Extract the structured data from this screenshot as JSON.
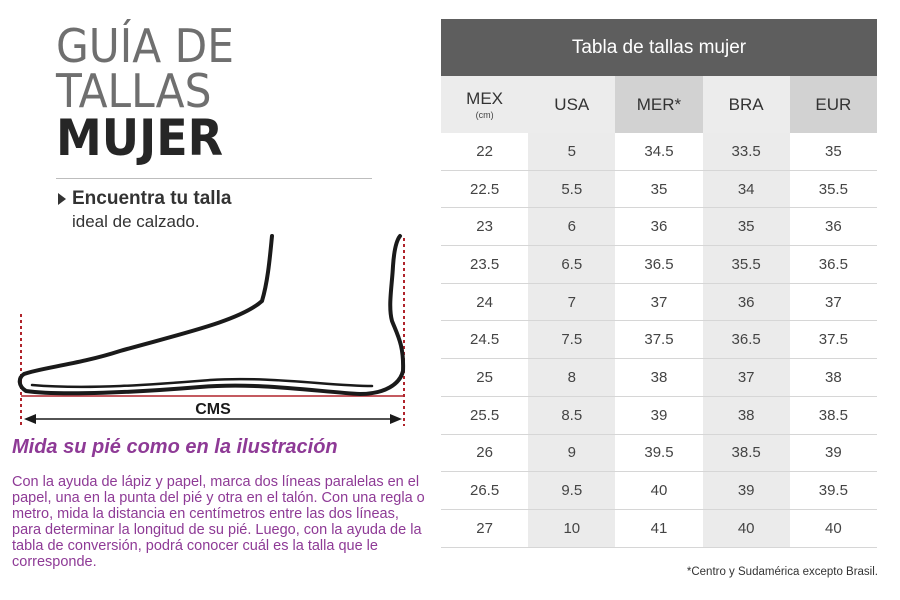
{
  "title": {
    "line1": "GUÍA DE",
    "line2": "TALLAS",
    "line3": "MUJER"
  },
  "find": {
    "line1": "Encuentra tu talla",
    "line2": "ideal de calzado."
  },
  "illustration": {
    "label": "CMS"
  },
  "subtitle": "Mida su pié como en la ilustración",
  "instructions": "Con la ayuda de lápiz y papel, marca dos líneas paralelas en el papel, una en la punta del pié y otra en el talón. Con una regla o metro, mida la distancia en centímetros entre las dos líneas, para determinar la longitud de su pié. Luego, con la ayuda de la tabla de conversión, podrá conocer cuál es la talla que le corresponde.",
  "table": {
    "title": "Tabla de tallas mujer",
    "columns": [
      {
        "label": "MEX",
        "sub": "(cm)"
      },
      {
        "label": "USA",
        "sub": ""
      },
      {
        "label": "MER*",
        "sub": ""
      },
      {
        "label": "BRA",
        "sub": ""
      },
      {
        "label": "EUR",
        "sub": ""
      }
    ],
    "rows": [
      [
        "22",
        "5",
        "34.5",
        "33.5",
        "35"
      ],
      [
        "22.5",
        "5.5",
        "35",
        "34",
        "35.5"
      ],
      [
        "23",
        "6",
        "36",
        "35",
        "36"
      ],
      [
        "23.5",
        "6.5",
        "36.5",
        "35.5",
        "36.5"
      ],
      [
        "24",
        "7",
        "37",
        "36",
        "37"
      ],
      [
        "24.5",
        "7.5",
        "37.5",
        "36.5",
        "37.5"
      ],
      [
        "25",
        "8",
        "38",
        "37",
        "38"
      ],
      [
        "25.5",
        "8.5",
        "39",
        "38",
        "38.5"
      ],
      [
        "26",
        "9",
        "39.5",
        "38.5",
        "39"
      ],
      [
        "26.5",
        "9.5",
        "40",
        "39",
        "39.5"
      ],
      [
        "27",
        "10",
        "41",
        "40",
        "40"
      ]
    ]
  },
  "footnote": "*Centro y Sudamérica excepto Brasil.",
  "colors": {
    "accent": "#8e3a96",
    "header": "#5e5e5e",
    "guide": "#b0242c"
  }
}
